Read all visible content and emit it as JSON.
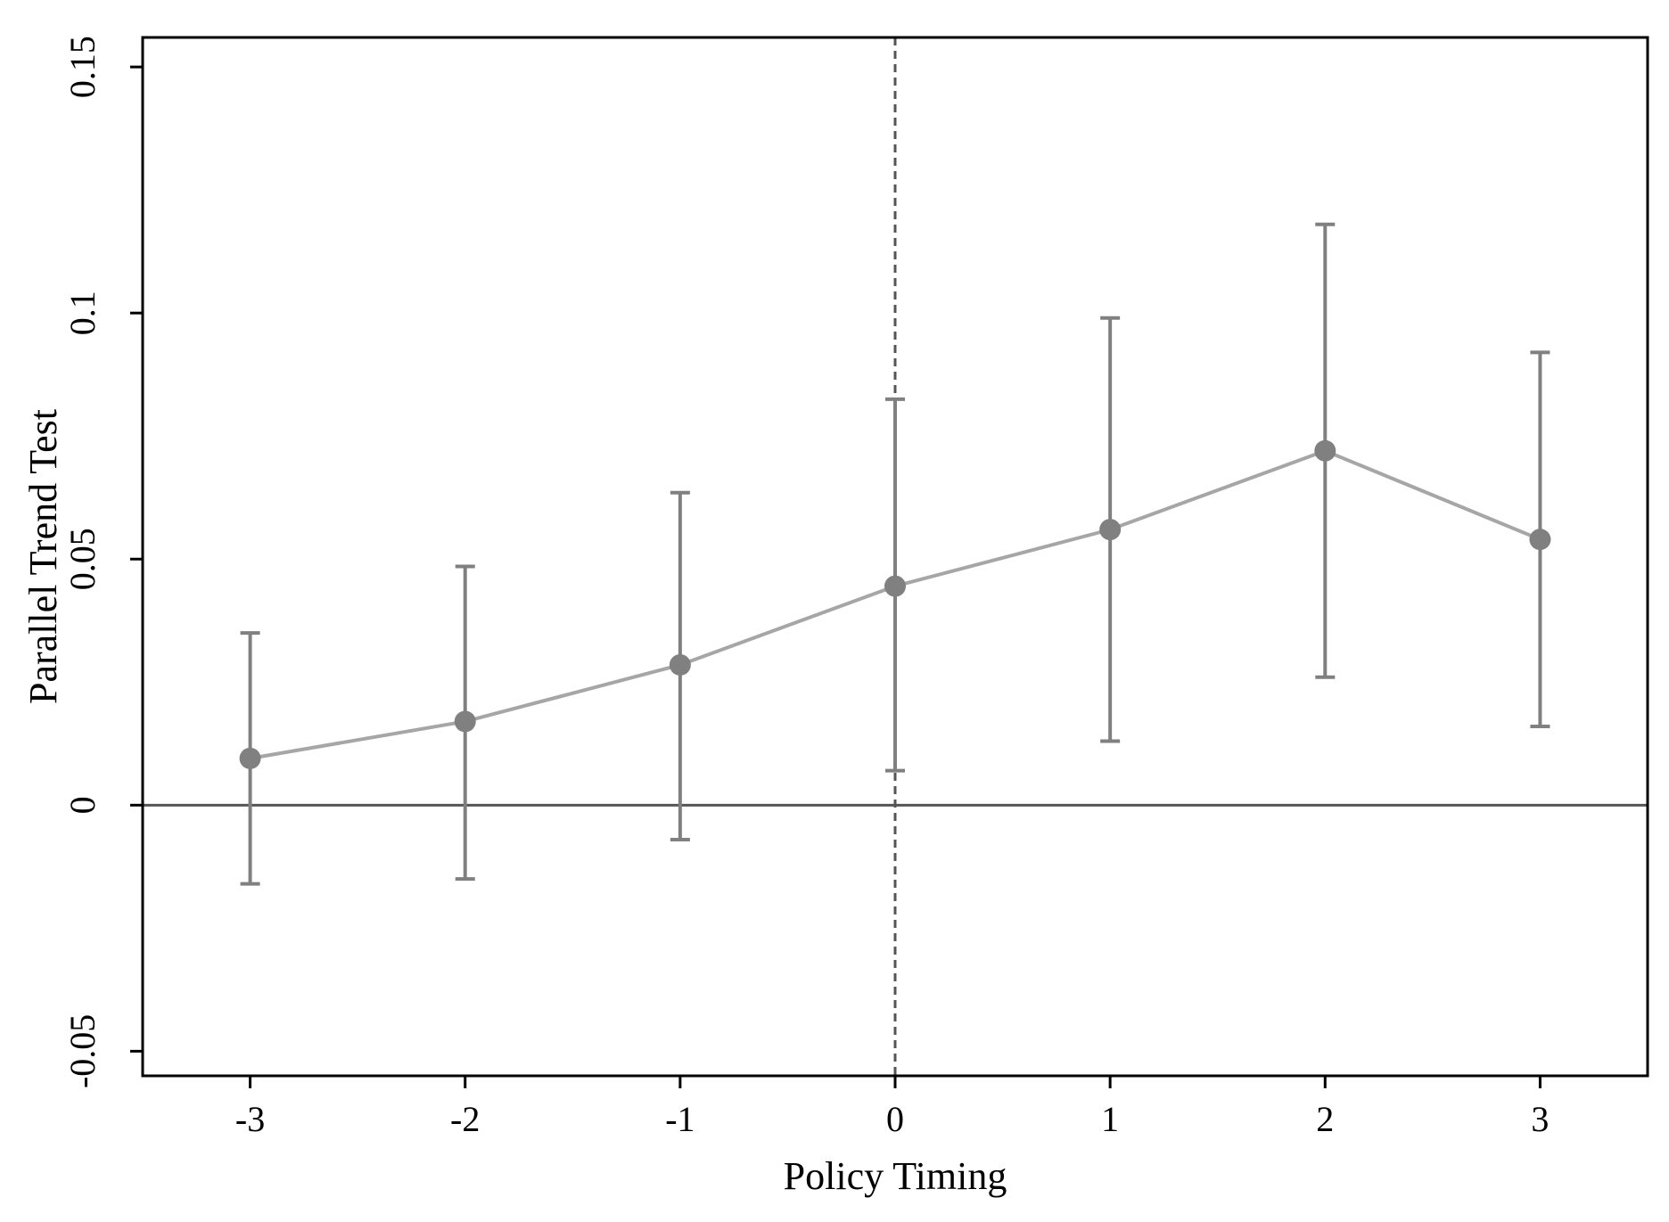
{
  "chart_data": {
    "type": "line",
    "title": "",
    "xlabel": "Policy Timing",
    "ylabel": "Parallel Trend Test",
    "x": [
      -3,
      -2,
      -1,
      0,
      1,
      2,
      3
    ],
    "x_tick_labels": [
      "-3",
      "-2",
      "-1",
      "0",
      "1",
      "2",
      "3"
    ],
    "y_tick_values": [
      -0.05,
      0,
      0.05,
      0.1,
      0.15
    ],
    "y_tick_labels": [
      "-0.05",
      "0",
      "0.05",
      "0.1",
      "0.15"
    ],
    "xlim": [
      -3.5,
      3.5
    ],
    "ylim": [
      -0.055,
      0.156
    ],
    "series": [
      {
        "values": [
          0.0095,
          0.017,
          0.0285,
          0.0445,
          0.056,
          0.072,
          0.054
        ],
        "ci_lower": [
          -0.016,
          -0.015,
          -0.007,
          0.007,
          0.013,
          0.026,
          0.016
        ],
        "ci_upper": [
          0.035,
          0.0485,
          0.0635,
          0.0825,
          0.099,
          0.118,
          0.092
        ]
      }
    ],
    "reference_lines": {
      "horizontal_y": 0,
      "vertical_x": 0,
      "vertical_style": "dashed"
    },
    "grid": false,
    "legend": "none",
    "colors": {
      "line": "#a6a6a6",
      "marker": "#808080",
      "ci": "#808080",
      "zero_line": "#555555",
      "dashed_line": "#555555",
      "frame": "#000000"
    }
  }
}
